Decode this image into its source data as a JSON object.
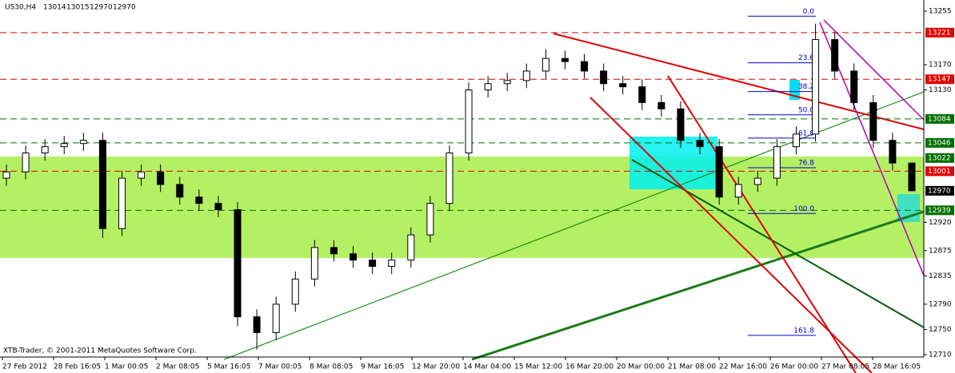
{
  "chart_data": {
    "type": "candlestick",
    "symbol": "US30,H4",
    "quote": [
      13014,
      13015,
      12970,
      12970
    ],
    "footer": "XTB-Trader, © 2001-2011 MetaQuotes Software Corp.",
    "categories": [
      "27 Feb 2012",
      "28 Feb 16:05",
      "1 Mar 00:05",
      "2 Mar 08:05",
      "5 Mar 16:05",
      "7 Mar 00:05",
      "8 Mar 08:05",
      "9 Mar 16:05",
      "12 Mar 20:00",
      "14 Mar 04:00",
      "15 Mar 12:00",
      "16 Mar 20:00",
      "20 Mar 00:00",
      "21 Mar 08:00",
      "22 Mar 16:00",
      "26 Mar 00:00",
      "27 Mar 08:05",
      "28 Mar 16:05"
    ],
    "open": [
      12990,
      13000,
      13030,
      13040,
      13045,
      13050,
      12910,
      12990,
      13000,
      12980,
      12960,
      12950,
      12940,
      12770,
      12745,
      12790,
      12830,
      12880,
      12870,
      12860,
      12850,
      12860,
      12900,
      12950,
      13030,
      13130,
      13140,
      13145,
      13160,
      13180,
      13175,
      13160,
      13140,
      13135,
      13110,
      13100,
      13050,
      13040,
      12960,
      12980,
      12990,
      13040,
      13060,
      13210,
      13160,
      13110,
      13050,
      13014
    ],
    "high": [
      13012,
      13042,
      13052,
      13057,
      13062,
      13062,
      13002,
      13012,
      13012,
      12992,
      12972,
      12962,
      12952,
      12782,
      12802,
      12842,
      12892,
      12892,
      12882,
      12872,
      12872,
      12912,
      12962,
      13042,
      13142,
      13152,
      13157,
      13172,
      13195,
      13192,
      13187,
      13172,
      13152,
      13147,
      13122,
      13112,
      13062,
      13052,
      12992,
      13002,
      13052,
      13072,
      13235,
      13222,
      13172,
      13122,
      13062,
      13015
    ],
    "low": [
      12978,
      12988,
      13018,
      13028,
      13033,
      12895,
      12898,
      12978,
      12968,
      12948,
      12938,
      12928,
      12755,
      12718,
      12733,
      12778,
      12818,
      12858,
      12848,
      12838,
      12838,
      12848,
      12888,
      12938,
      13018,
      13118,
      13128,
      13133,
      13148,
      13163,
      13148,
      13128,
      13123,
      13098,
      13088,
      13038,
      13028,
      12948,
      12948,
      12968,
      12978,
      13028,
      13048,
      13148,
      13098,
      13038,
      13002,
      12970
    ],
    "close": [
      13000,
      13030,
      13040,
      13045,
      13050,
      12910,
      12990,
      13000,
      12980,
      12960,
      12950,
      12940,
      12770,
      12745,
      12790,
      12830,
      12880,
      12870,
      12860,
      12850,
      12860,
      12900,
      12950,
      13030,
      13130,
      13140,
      13145,
      13160,
      13180,
      13175,
      13160,
      13140,
      13135,
      13110,
      13100,
      13050,
      13040,
      12960,
      12980,
      12990,
      13040,
      13060,
      13210,
      13160,
      13110,
      13050,
      13014,
      12970
    ],
    "ylim": [
      12710,
      13255
    ],
    "yticks": [
      13255,
      13170,
      13130,
      12920,
      12875,
      12835,
      12790,
      12750,
      12710
    ],
    "levels": [
      {
        "value": 13221,
        "color": "#e00000",
        "line": true
      },
      {
        "value": 13147,
        "color": "#e00000",
        "line": true
      },
      {
        "value": 13084,
        "color": "#007000",
        "line": true
      },
      {
        "value": 13046,
        "color": "#007000",
        "line": true
      },
      {
        "value": 13022,
        "color": "#007000",
        "line": false
      },
      {
        "value": 13001,
        "color": "#e00000",
        "line": true
      },
      {
        "value": 12970,
        "color": "#000000",
        "line": false
      },
      {
        "value": 12939,
        "color": "#007000",
        "line": true
      }
    ],
    "fibo": {
      "high": 13247,
      "low": 12934,
      "color": "#0000cc",
      "levels": [
        {
          "value": 0,
          "label": "0.0"
        },
        {
          "value": 23.6,
          "label": "23.6"
        },
        {
          "value": 38.2,
          "label": "38.2"
        },
        {
          "value": 50,
          "label": "50.0"
        },
        {
          "value": 61.8,
          "label": "61.8"
        },
        {
          "value": 76.8,
          "label": "76.8"
        },
        {
          "value": 100,
          "label": "100.0"
        },
        {
          "value": 161.8,
          "label": "161.8"
        }
      ]
    }
  }
}
